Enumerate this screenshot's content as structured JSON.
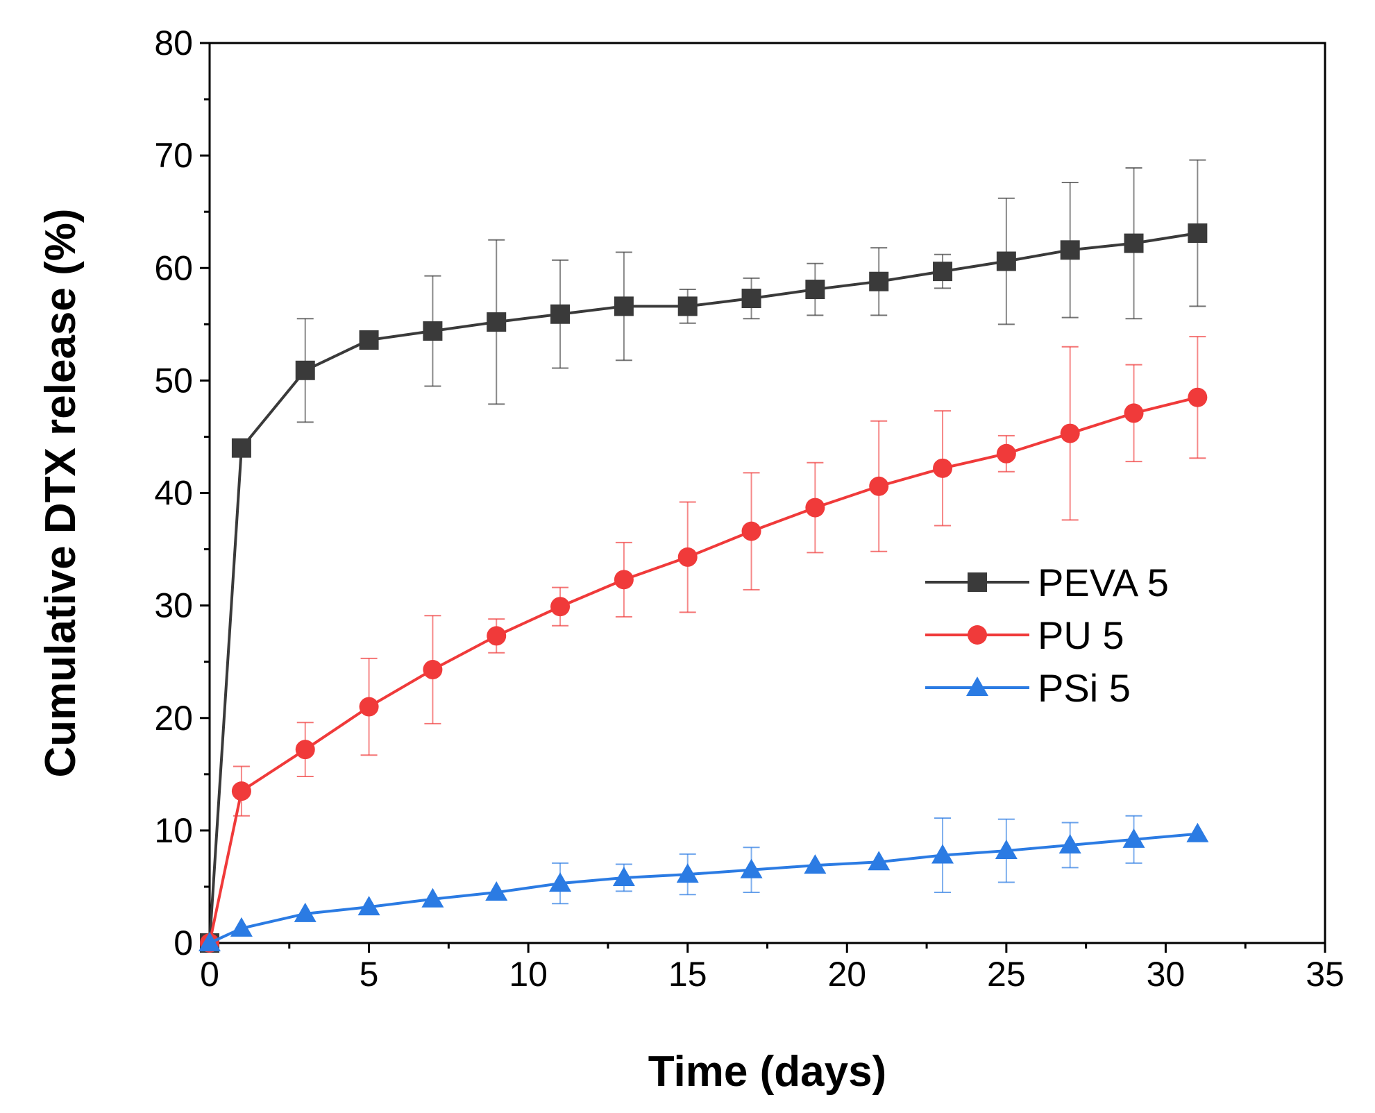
{
  "chart_data": {
    "type": "line",
    "title": "",
    "xlabel": "Time (days)",
    "ylabel": "Cumulative DTX release (%)",
    "xlim": [
      0,
      35
    ],
    "ylim": [
      0,
      80
    ],
    "x_ticks": [
      0,
      5,
      10,
      15,
      20,
      25,
      30,
      35
    ],
    "y_ticks": [
      0,
      10,
      20,
      30,
      40,
      50,
      60,
      70,
      80
    ],
    "grid": false,
    "legend_position": "center-right",
    "series": [
      {
        "name": "PEVA 5",
        "color": "#3a3a3a",
        "marker": "square",
        "x": [
          0,
          1,
          3,
          5,
          7,
          9,
          11,
          13,
          15,
          17,
          19,
          21,
          23,
          25,
          27,
          29,
          31
        ],
        "y": [
          0,
          44.0,
          50.9,
          53.6,
          54.4,
          55.2,
          55.9,
          56.6,
          56.6,
          57.3,
          58.1,
          58.8,
          59.7,
          60.6,
          61.6,
          62.2,
          63.1
        ],
        "error": [
          0,
          0,
          4.6,
          0,
          4.9,
          7.3,
          4.8,
          4.8,
          1.5,
          1.8,
          2.3,
          3.0,
          1.5,
          5.6,
          6.0,
          6.7,
          6.5
        ]
      },
      {
        "name": "PU 5",
        "color": "#f03a3a",
        "marker": "circle",
        "x": [
          0,
          1,
          3,
          5,
          7,
          9,
          11,
          13,
          15,
          17,
          19,
          21,
          23,
          25,
          27,
          29,
          31
        ],
        "y": [
          0,
          13.5,
          17.2,
          21.0,
          24.3,
          27.3,
          29.9,
          32.3,
          34.3,
          36.6,
          38.7,
          40.6,
          42.2,
          43.5,
          45.3,
          47.1,
          48.5
        ],
        "error": [
          0,
          2.2,
          2.4,
          4.3,
          4.8,
          1.5,
          1.7,
          3.3,
          4.9,
          5.2,
          4.0,
          5.8,
          5.1,
          1.6,
          7.7,
          4.3,
          5.4
        ]
      },
      {
        "name": "PSi 5",
        "color": "#2b7be3",
        "marker": "triangle",
        "x": [
          0,
          1,
          3,
          5,
          7,
          9,
          11,
          13,
          15,
          17,
          19,
          21,
          23,
          25,
          27,
          29,
          31
        ],
        "y": [
          0,
          1.3,
          2.6,
          3.2,
          3.9,
          4.5,
          5.3,
          5.8,
          6.1,
          6.5,
          6.9,
          7.2,
          7.8,
          8.2,
          8.7,
          9.2,
          9.7
        ],
        "error": [
          0,
          0,
          0,
          0,
          0,
          0,
          1.8,
          1.2,
          1.8,
          2.0,
          0,
          0,
          3.3,
          2.8,
          2.0,
          2.1,
          0
        ]
      }
    ]
  }
}
